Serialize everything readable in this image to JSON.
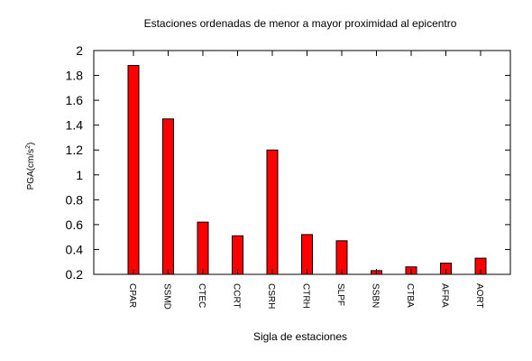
{
  "chart_data": {
    "type": "bar",
    "title": "Estaciones ordenadas de menor a mayor proximidad al epicentro",
    "xlabel": "Sigla de estaciones",
    "ylabel_main": "PGA(cm/s",
    "ylabel_sup": "2",
    "ylabel_end": ")",
    "categories": [
      "CPAR",
      "SSMD",
      "CTEC",
      "CCRT",
      "CSRH",
      "CTRH",
      "SLPF",
      "SSBN",
      "CTBA",
      "AFRA",
      "AORT"
    ],
    "values": [
      1.88,
      1.45,
      0.62,
      0.51,
      1.2,
      0.52,
      0.47,
      0.23,
      0.26,
      0.29,
      0.33
    ],
    "ylim": [
      0.2,
      2
    ],
    "yticks": [
      0.2,
      0.4,
      0.6,
      0.8,
      1,
      1.2,
      1.4,
      1.6,
      1.8,
      2
    ],
    "ytick_labels": [
      "0.2",
      "0.4",
      "0.6",
      "0.8",
      "1",
      "1.2",
      "1.4",
      "1.6",
      "1.8",
      "2"
    ],
    "bar_color": "#ff0000",
    "bar_edge_color": "#000000",
    "grid": false,
    "legend": "none"
  }
}
